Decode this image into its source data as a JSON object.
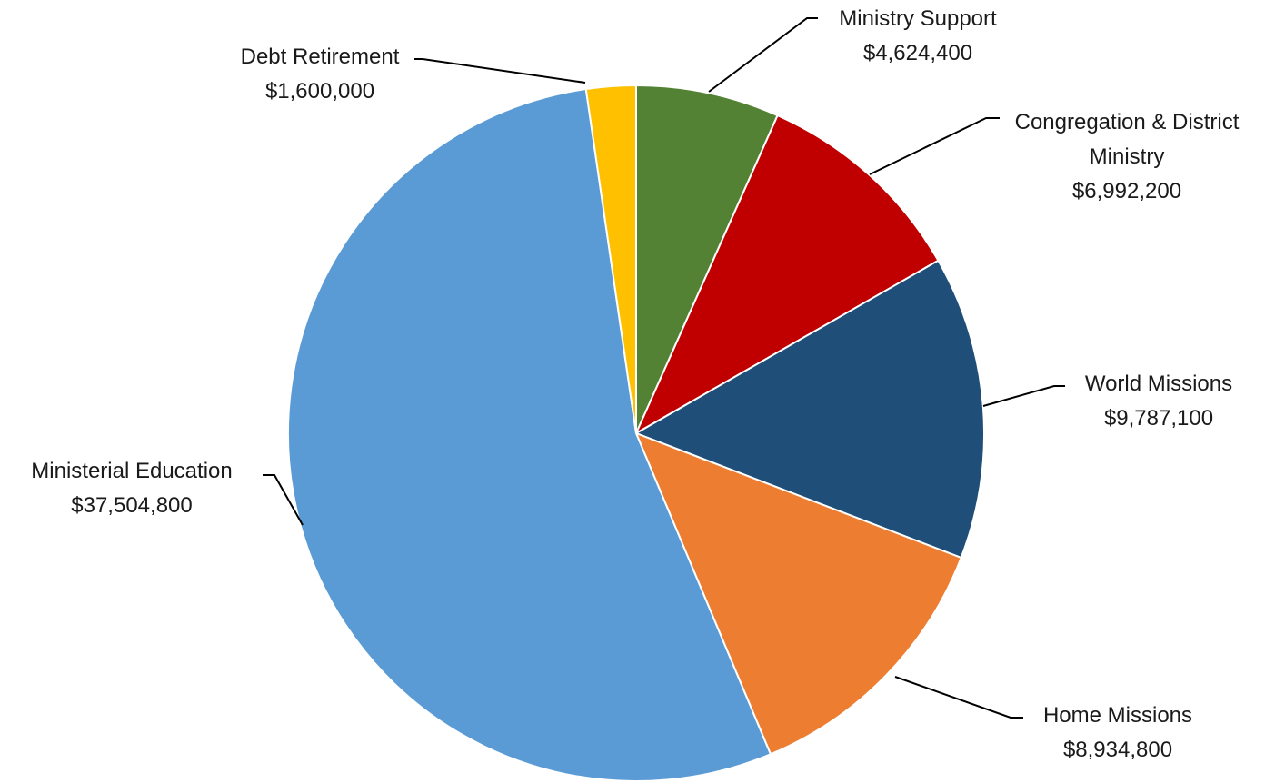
{
  "chart_data": {
    "type": "pie",
    "start": "12 o'clock",
    "direction": "clockwise",
    "slices": [
      {
        "key": "ministry-support",
        "label": "Ministry Support",
        "value_label": "$4,624,400",
        "value": 4624400,
        "color": "#548235"
      },
      {
        "key": "congregation-district-ministry",
        "label": "Congregation & District Ministry",
        "value_label": "$6,992,200",
        "value": 6992200,
        "color": "#C00000"
      },
      {
        "key": "world-missions",
        "label": "World Missions",
        "value_label": "$9,787,100",
        "value": 9787100,
        "color": "#1F4E79"
      },
      {
        "key": "home-missions",
        "label": "Home Missions",
        "value_label": "$8,934,800",
        "value": 8934800,
        "color": "#ED7D31"
      },
      {
        "key": "ministerial-education",
        "label": "Ministerial Education",
        "value_label": "$37,504,800",
        "value": 37504800,
        "color": "#5B9BD5"
      },
      {
        "key": "debt-retirement",
        "label": "Debt Retirement",
        "value_label": "$1,600,000",
        "value": 1600000,
        "color": "#FFC000"
      }
    ]
  }
}
